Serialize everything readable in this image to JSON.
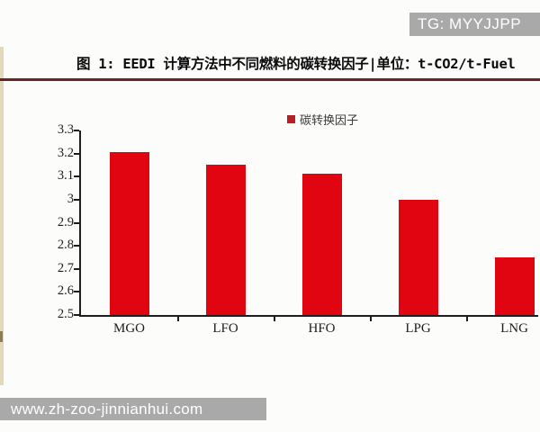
{
  "overlay": {
    "tg_badge": "TG: MYYJJPP",
    "watermark_url": "www.zh-zoo-jinnianhui.com"
  },
  "figure": {
    "title": "图 1: EEDI 计算方法中不同燃料的碳转换因子|单位：t-CO2/t-Fuel"
  },
  "chart_data": {
    "type": "bar",
    "title": "图 1: EEDI 计算方法中不同燃料的碳转换因子",
    "unit": "t-CO2/t-Fuel",
    "legend": [
      "碳转换因子"
    ],
    "legend_position": "top",
    "categories": [
      "MGO",
      "LFO",
      "HFO",
      "LPG",
      "LNG"
    ],
    "values": [
      3.206,
      3.151,
      3.114,
      3.0,
      2.75
    ],
    "xlabel": "",
    "ylabel": "",
    "ylim": [
      2.5,
      3.3
    ],
    "y_ticks": [
      "3.3",
      "3.2",
      "3.1",
      "3",
      "2.9",
      "2.8",
      "2.7",
      "2.6",
      "2.5"
    ],
    "grid": false,
    "bar_color": "#e00511",
    "legend_marker_color": "#b42025"
  },
  "colors": {
    "page_bg": "#fcfcfb",
    "overlay_gray": "#a9a9a9",
    "title_rule": "#6d2226",
    "axis": "#1d1d1d"
  }
}
